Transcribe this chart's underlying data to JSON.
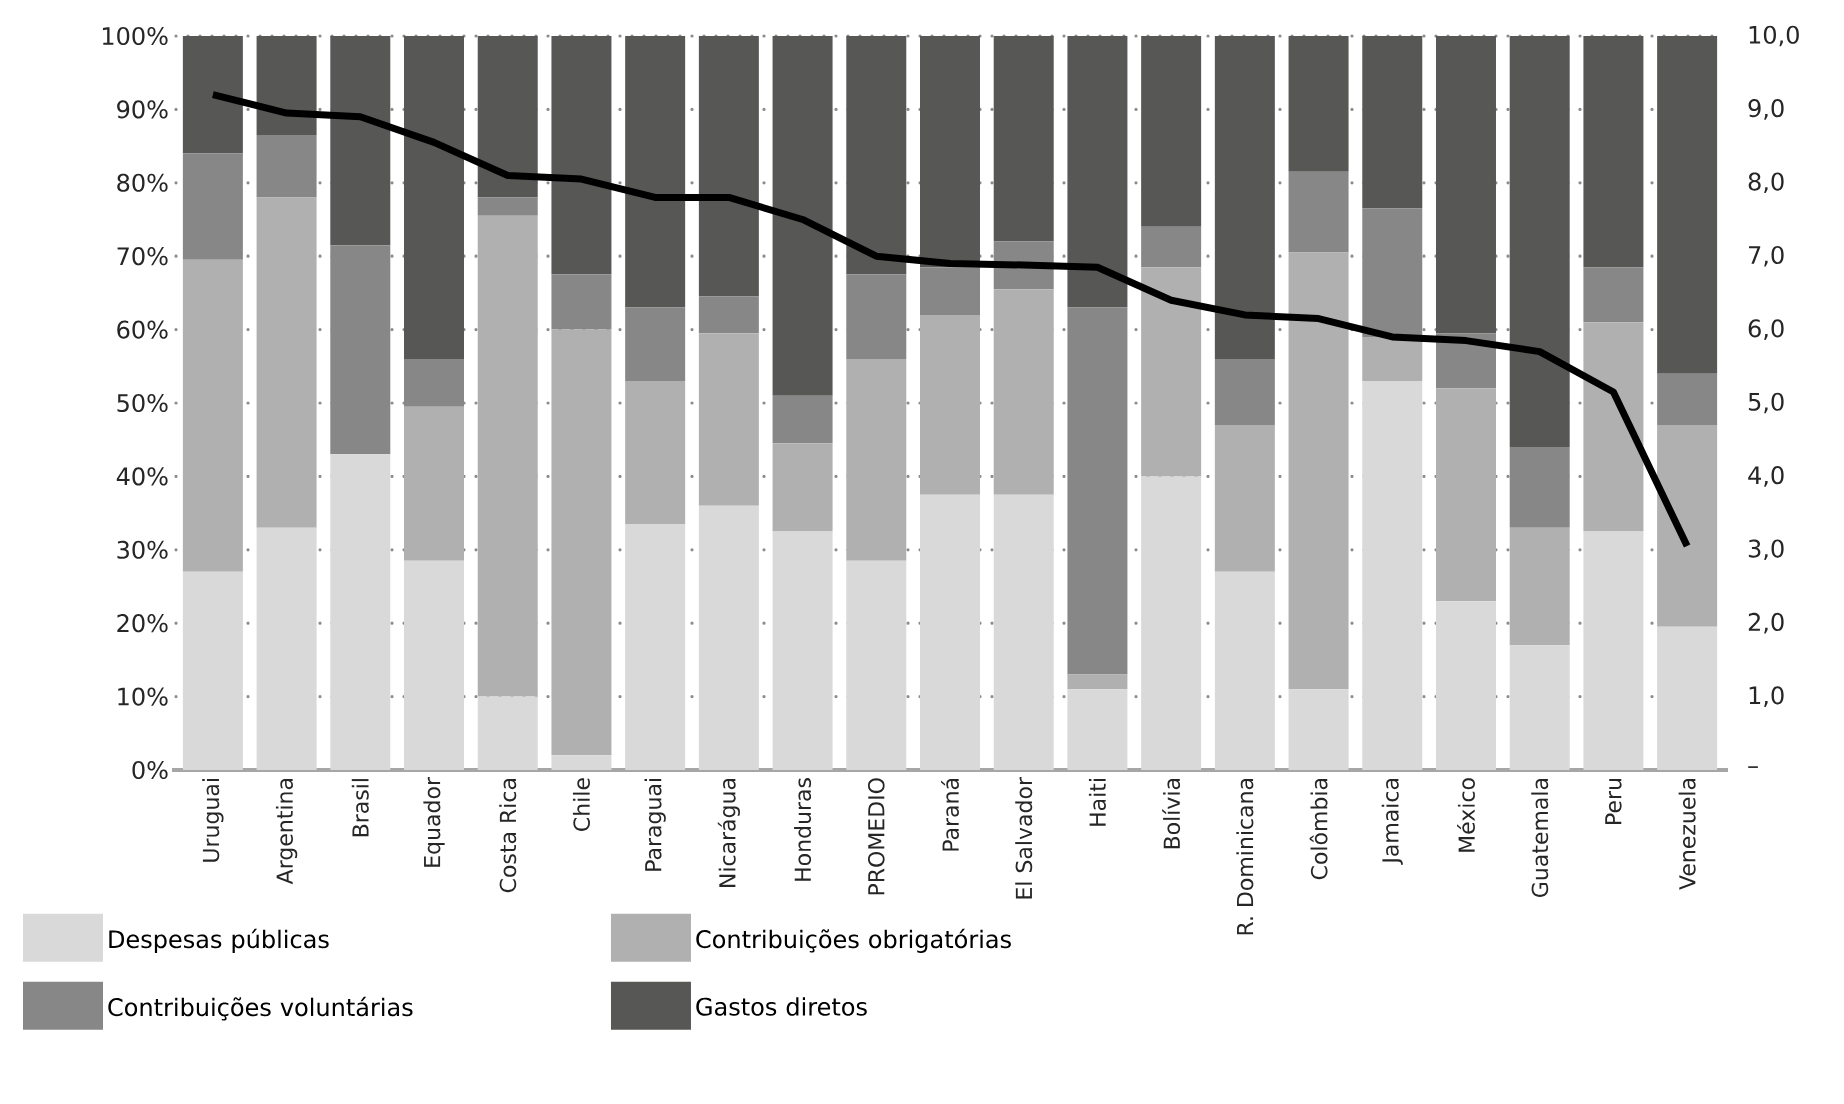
{
  "chart_data": {
    "type": "bar",
    "stacked": true,
    "grid": "y",
    "legend": "bottom",
    "categories": [
      "Uruguai",
      "Argentina",
      "Brasil",
      "Equador",
      "Costa Rica",
      "Chile",
      "Paraguai",
      "Nicarágua",
      "Honduras",
      "PROMEDIO",
      "Paraná",
      "El Salvador",
      "Haiti",
      "Bolívia",
      "R. Dominicana",
      "Colômbia",
      "Jamaica",
      "México",
      "Guatemala",
      "Peru",
      "Venezuela"
    ],
    "series": [
      {
        "name": "Despesas públicas",
        "color": "#d9d9d9",
        "values": [
          27,
          33,
          43,
          28.5,
          10,
          2,
          33.5,
          36,
          32.5,
          28.5,
          37.5,
          37.5,
          11,
          40,
          27,
          11,
          53,
          23,
          17,
          32.5,
          19.5
        ]
      },
      {
        "name": "Contribuições obrigatórias",
        "color": "#b0b0b0",
        "values": [
          42.5,
          45,
          0,
          21,
          65.5,
          58,
          19.5,
          23.5,
          12,
          27.5,
          24.5,
          28,
          2,
          28.5,
          20,
          59.5,
          6,
          29,
          16,
          28.5,
          27.5
        ]
      },
      {
        "name": "Contribuições voluntárias",
        "color": "#878787",
        "values": [
          14.5,
          8.5,
          28.5,
          6.5,
          2.5,
          7.5,
          10,
          5,
          6.5,
          11.5,
          6.5,
          6.5,
          50,
          5.5,
          9,
          11,
          17.5,
          7.5,
          11,
          7.5,
          7
        ]
      },
      {
        "name": "Gastos diretos",
        "color": "#575756",
        "values": [
          16,
          13.5,
          28.5,
          44,
          22,
          32.5,
          37,
          35.5,
          49,
          32.5,
          31.5,
          28,
          37,
          26,
          44,
          18.5,
          23.5,
          40.5,
          56,
          31.5,
          46
        ]
      },
      {
        "type": "line",
        "axis": "y2",
        "color": "#000000",
        "values": [
          9.2,
          8.95,
          8.9,
          8.55,
          8.1,
          8.05,
          7.8,
          7.8,
          7.5,
          7.0,
          6.9,
          6.88,
          6.85,
          6.4,
          6.2,
          6.15,
          5.9,
          5.85,
          5.7,
          5.15,
          3.05
        ]
      }
    ],
    "ylim": [
      0,
      100
    ],
    "yticks": [
      {
        "value": 0,
        "label": "0%"
      },
      {
        "value": 10,
        "label": "10%"
      },
      {
        "value": 20,
        "label": "20%"
      },
      {
        "value": 30,
        "label": "30%"
      },
      {
        "value": 40,
        "label": "40%"
      },
      {
        "value": 50,
        "label": "50%"
      },
      {
        "value": 60,
        "label": "60%"
      },
      {
        "value": 70,
        "label": "70%"
      },
      {
        "value": 80,
        "label": "80%"
      },
      {
        "value": 90,
        "label": "90%"
      },
      {
        "value": 100,
        "label": "100%"
      }
    ],
    "y2lim": [
      0,
      10
    ],
    "y2ticks": [
      {
        "value": 0,
        "label": "–"
      },
      {
        "value": 1,
        "label": "1,0"
      },
      {
        "value": 2,
        "label": "2,0"
      },
      {
        "value": 3,
        "label": "3,0"
      },
      {
        "value": 4,
        "label": "4,0"
      },
      {
        "value": 5,
        "label": "5,0"
      },
      {
        "value": 6,
        "label": "6,0"
      },
      {
        "value": 7,
        "label": "7,0"
      },
      {
        "value": 8,
        "label": "8,0"
      },
      {
        "value": 9,
        "label": "9,0"
      },
      {
        "value": 10,
        "label": "10,0"
      }
    ]
  }
}
